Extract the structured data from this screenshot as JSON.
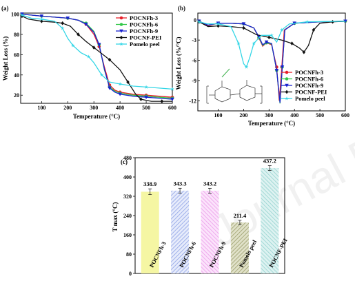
{
  "watermark": "Journal Pre-proof",
  "colors": {
    "POCNFh-3": "#e8202a",
    "POCNFh-6": "#33c84a",
    "POCNFh-9": "#1a22d0",
    "POCNF-PEI": "#111111",
    "Pomelo peel": "#33d6e6"
  },
  "chart_data": [
    {
      "panel": "(a)",
      "type": "line",
      "xlabel": "Temperature (°C)",
      "ylabel": "Weight Loss (%)",
      "xlim": [
        20,
        600
      ],
      "ylim": [
        12,
        101
      ],
      "xticks": [
        100,
        200,
        300,
        400,
        500,
        600
      ],
      "yticks": [
        20,
        40,
        60,
        80,
        100
      ],
      "legend": "top-right",
      "series": [
        {
          "name": "POCNFh-3",
          "marker": "circle",
          "points": [
            [
              25,
              100
            ],
            [
              60,
              99
            ],
            [
              100,
              98
            ],
            [
              150,
              97
            ],
            [
              200,
              96
            ],
            [
              240,
              94
            ],
            [
              270,
              90
            ],
            [
              300,
              80
            ],
            [
              320,
              68
            ],
            [
              340,
              48
            ],
            [
              360,
              30
            ],
            [
              380,
              25
            ],
            [
              400,
              23
            ],
            [
              450,
              21
            ],
            [
              500,
              20
            ],
            [
              550,
              19
            ],
            [
              600,
              18
            ]
          ]
        },
        {
          "name": "POCNFh-6",
          "marker": "circle",
          "points": [
            [
              25,
              100
            ],
            [
              60,
              99
            ],
            [
              100,
              98
            ],
            [
              150,
              97
            ],
            [
              200,
              96
            ],
            [
              240,
              94
            ],
            [
              270,
              91
            ],
            [
              300,
              83
            ],
            [
              320,
              70
            ],
            [
              340,
              45
            ],
            [
              360,
              28
            ],
            [
              380,
              24
            ],
            [
              400,
              22
            ],
            [
              450,
              20
            ],
            [
              500,
              19
            ],
            [
              550,
              18
            ],
            [
              600,
              17
            ]
          ]
        },
        {
          "name": "POCNFh-9",
          "marker": "triangle",
          "points": [
            [
              25,
              100
            ],
            [
              60,
              99
            ],
            [
              100,
              98
            ],
            [
              150,
              97
            ],
            [
              200,
              96
            ],
            [
              240,
              94
            ],
            [
              270,
              90
            ],
            [
              300,
              82
            ],
            [
              320,
              70
            ],
            [
              340,
              46
            ],
            [
              360,
              27
            ],
            [
              380,
              23
            ],
            [
              400,
              21
            ],
            [
              450,
              19
            ],
            [
              500,
              18
            ],
            [
              550,
              17
            ],
            [
              600,
              16
            ]
          ]
        },
        {
          "name": "POCNF-PEI",
          "marker": "diamond",
          "points": [
            [
              25,
              98
            ],
            [
              50,
              95
            ],
            [
              100,
              93
            ],
            [
              150,
              92
            ],
            [
              180,
              91
            ],
            [
              210,
              88
            ],
            [
              240,
              80
            ],
            [
              270,
              73
            ],
            [
              300,
              67
            ],
            [
              330,
              61
            ],
            [
              360,
              55
            ],
            [
              400,
              45
            ],
            [
              430,
              33
            ],
            [
              460,
              21
            ],
            [
              480,
              16
            ],
            [
              520,
              14
            ],
            [
              560,
              14
            ],
            [
              600,
              14
            ]
          ]
        },
        {
          "name": "Pomelo peel",
          "marker": "star",
          "points": [
            [
              25,
              99
            ],
            [
              60,
              96
            ],
            [
              100,
              95
            ],
            [
              150,
              93
            ],
            [
              180,
              86
            ],
            [
              200,
              76
            ],
            [
              220,
              69
            ],
            [
              250,
              62
            ],
            [
              280,
              58
            ],
            [
              300,
              52
            ],
            [
              330,
              40
            ],
            [
              360,
              33
            ],
            [
              400,
              31
            ],
            [
              450,
              29
            ],
            [
              500,
              28
            ],
            [
              550,
              27
            ],
            [
              600,
              26
            ]
          ]
        }
      ]
    },
    {
      "panel": "(b)",
      "type": "line",
      "xlabel": "Temperature (°C)",
      "ylabel": "Weight Loss (%/°C)",
      "xlim": [
        20,
        600
      ],
      "ylim": [
        -13.5,
        1
      ],
      "xticks": [
        100,
        200,
        300,
        400,
        500,
        600
      ],
      "yticks": [
        0,
        -3,
        -6,
        -9,
        -12
      ],
      "legend": "bottom-right",
      "series": [
        {
          "name": "POCNFh-3",
          "marker": "circle",
          "points": [
            [
              25,
              -0.2
            ],
            [
              60,
              -0.9
            ],
            [
              100,
              -0.5
            ],
            [
              150,
              -0.5
            ],
            [
              200,
              -0.6
            ],
            [
              240,
              -1.2
            ],
            [
              260,
              -2.7
            ],
            [
              275,
              -3.9
            ],
            [
              290,
              -3.4
            ],
            [
              310,
              -3.7
            ],
            [
              330,
              -7
            ],
            [
              340,
              -12
            ],
            [
              350,
              -7
            ],
            [
              360,
              -1.5
            ],
            [
              400,
              -0.5
            ],
            [
              500,
              -0.3
            ],
            [
              600,
              -0.2
            ]
          ]
        },
        {
          "name": "POCNFh-6",
          "marker": "circle",
          "points": [
            [
              25,
              -0.2
            ],
            [
              60,
              -0.8
            ],
            [
              100,
              -0.5
            ],
            [
              150,
              -0.5
            ],
            [
              200,
              -0.6
            ],
            [
              240,
              -1.2
            ],
            [
              260,
              -2.6
            ],
            [
              275,
              -3.8
            ],
            [
              290,
              -3.4
            ],
            [
              310,
              -3.6
            ],
            [
              330,
              -7.5
            ],
            [
              343,
              -12.4
            ],
            [
              352,
              -7
            ],
            [
              362,
              -1.5
            ],
            [
              400,
              -0.5
            ],
            [
              500,
              -0.3
            ],
            [
              600,
              -0.2
            ]
          ]
        },
        {
          "name": "POCNFh-9",
          "marker": "triangle",
          "points": [
            [
              25,
              -0.2
            ],
            [
              60,
              -0.8
            ],
            [
              100,
              -0.5
            ],
            [
              150,
              -0.5
            ],
            [
              200,
              -0.6
            ],
            [
              240,
              -1.2
            ],
            [
              260,
              -2.5
            ],
            [
              275,
              -3.7
            ],
            [
              290,
              -3.3
            ],
            [
              310,
              -3.5
            ],
            [
              330,
              -7.5
            ],
            [
              343,
              -12.3
            ],
            [
              352,
              -7
            ],
            [
              362,
              -1.5
            ],
            [
              400,
              -0.5
            ],
            [
              500,
              -0.3
            ],
            [
              600,
              -0.2
            ]
          ]
        },
        {
          "name": "POCNF-PEI",
          "marker": "diamond",
          "points": [
            [
              25,
              -0.3
            ],
            [
              60,
              -1.0
            ],
            [
              100,
              -0.9
            ],
            [
              150,
              -1.0
            ],
            [
              200,
              -1.2
            ],
            [
              250,
              -2.2
            ],
            [
              300,
              -2.6
            ],
            [
              350,
              -3.0
            ],
            [
              390,
              -3.5
            ],
            [
              420,
              -4.2
            ],
            [
              437,
              -4.8
            ],
            [
              455,
              -3.8
            ],
            [
              475,
              -1.5
            ],
            [
              500,
              -0.5
            ],
            [
              550,
              -0.3
            ],
            [
              600,
              -0.2
            ]
          ]
        },
        {
          "name": "Pomelo peel",
          "marker": "star",
          "points": [
            [
              25,
              -0.3
            ],
            [
              60,
              -0.6
            ],
            [
              100,
              -0.6
            ],
            [
              150,
              -1.0
            ],
            [
              180,
              -3.5
            ],
            [
              200,
              -6.5
            ],
            [
              211,
              -7.0
            ],
            [
              225,
              -5.5
            ],
            [
              240,
              -3.5
            ],
            [
              270,
              -2.3
            ],
            [
              310,
              -2.3
            ],
            [
              330,
              -3.3
            ],
            [
              350,
              -1.5
            ],
            [
              380,
              -0.6
            ],
            [
              450,
              -0.3
            ],
            [
              600,
              -0.2
            ]
          ]
        }
      ]
    },
    {
      "panel": "(c)",
      "type": "bar",
      "ylabel": "T max (°C)",
      "ylim": [
        0,
        480
      ],
      "yticks": [
        0,
        80,
        160,
        240,
        320,
        400,
        480
      ],
      "categories": [
        "POCNFh-3",
        "POCNFh-6",
        "POCNFh-9",
        "Pomelo peel",
        "POCNF-PEI"
      ],
      "values": [
        338.9,
        343.3,
        343.2,
        211.4,
        437.2
      ],
      "errors": [
        12,
        10,
        10,
        9,
        10
      ],
      "data_labels": [
        "338.9",
        "343.3",
        "343.2",
        "211.4",
        "437.2"
      ],
      "bar_colors": [
        "#f4f59a",
        "#b7c6f3",
        "#f4bff1",
        "#cdcfa9",
        "#bfe5e3"
      ]
    }
  ],
  "panels": {
    "a": {
      "label": "(a)"
    },
    "b": {
      "label": "(b)"
    },
    "c": {
      "label": "(c)"
    }
  }
}
